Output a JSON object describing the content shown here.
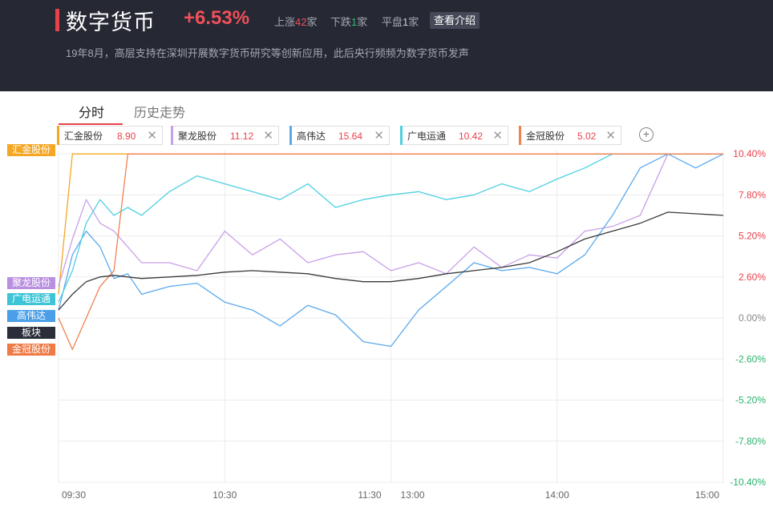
{
  "header": {
    "title": "数字货币",
    "change": "+6.53%",
    "up_label": "上涨",
    "up_count": "42",
    "unit1": "家",
    "down_label": "下跌",
    "down_count": "1",
    "unit2": "家",
    "flat_label": "平盘",
    "flat_count": "1",
    "unit3": "家",
    "intro_button": "查看介绍",
    "description": "19年8月，高层支持在深圳开展数字货币研究等创新应用，此后央行频频为数字货币发声"
  },
  "tabs": [
    {
      "label": "分时"
    },
    {
      "label": "历史走势"
    }
  ],
  "chips": [
    {
      "name": "汇金股份",
      "value": "8.90",
      "color": "#f5a623"
    },
    {
      "name": "聚龙股份",
      "value": "11.12",
      "color": "#c9a0e8"
    },
    {
      "name": "高伟达",
      "value": "15.64",
      "color": "#5aa9ee"
    },
    {
      "name": "广电运通",
      "value": "10.42",
      "color": "#4dd0e1"
    },
    {
      "name": "金冠股份",
      "value": "5.02",
      "color": "#f08050"
    }
  ],
  "add_icon": "plus-circle-icon",
  "close_icon": "close-icon",
  "side_tags": [
    {
      "label": "汇金股份",
      "color": "#f5a623"
    },
    {
      "label": "聚龙股份",
      "color": "#b98fe0"
    },
    {
      "label": "广电运通",
      "color": "#3dc4d6"
    },
    {
      "label": "高伟达",
      "color": "#4a9fe8"
    },
    {
      "label": "板块",
      "color": "#2b2e3a"
    },
    {
      "label": "金冠股份",
      "color": "#f07a45"
    }
  ],
  "chart_data": {
    "type": "line",
    "ylim": [
      -10.4,
      10.4
    ],
    "y_ticks": [
      "10.40%",
      "7.80%",
      "5.20%",
      "2.60%",
      "0.00%",
      "-2.60%",
      "-5.20%",
      "-7.80%",
      "-10.40%"
    ],
    "x_ticks": [
      "09:30",
      "10:30",
      "11:30",
      "13:00",
      "14:00",
      "15:00"
    ],
    "x": [
      0,
      5,
      10,
      15,
      20,
      25,
      30,
      40,
      50,
      60,
      70,
      80,
      90,
      100,
      110,
      120,
      130,
      140,
      150,
      160,
      170,
      180,
      190,
      200,
      210,
      220,
      230,
      240
    ],
    "series": [
      {
        "name": "汇金股份",
        "color": "#f5a623",
        "values": [
          1.5,
          10.39,
          10.39,
          10.39,
          10.39,
          10.39,
          10.39,
          10.39,
          10.39,
          10.39,
          10.39,
          10.39,
          10.39,
          10.39,
          10.39,
          10.39,
          10.39,
          10.39,
          10.39,
          10.39,
          10.39,
          10.39,
          10.39,
          10.39,
          10.39,
          10.39,
          10.39,
          10.39
        ]
      },
      {
        "name": "聚龙股份",
        "color": "#c9a0e8",
        "values": [
          2.0,
          5.0,
          7.5,
          6.0,
          5.5,
          4.5,
          3.5,
          3.5,
          3.0,
          5.5,
          4.0,
          5.0,
          3.5,
          4.0,
          4.2,
          3.0,
          3.5,
          2.8,
          4.5,
          3.2,
          4.0,
          3.8,
          5.5,
          5.8,
          6.5,
          10.39,
          10.39,
          10.39
        ]
      },
      {
        "name": "高伟达",
        "color": "#5aa9ee",
        "values": [
          0.5,
          4.0,
          5.5,
          4.5,
          2.5,
          2.8,
          1.5,
          2.0,
          2.2,
          1.0,
          0.5,
          -0.5,
          0.8,
          0.2,
          -1.5,
          -1.8,
          0.5,
          2.0,
          3.5,
          3.0,
          3.2,
          2.8,
          4.0,
          6.5,
          9.5,
          10.39,
          9.5,
          10.39
        ]
      },
      {
        "name": "广电运通",
        "color": "#4dd0e1",
        "values": [
          1.0,
          3.0,
          6.0,
          7.5,
          6.5,
          7.0,
          6.5,
          8.0,
          9.0,
          8.5,
          8.0,
          7.5,
          8.5,
          7.0,
          7.5,
          7.8,
          8.0,
          7.5,
          7.8,
          8.5,
          8.0,
          8.8,
          9.5,
          10.39,
          10.39,
          10.39,
          10.39,
          10.39
        ]
      },
      {
        "name": "金冠股份",
        "color": "#f08050",
        "values": [
          0.0,
          -2.0,
          0.0,
          2.0,
          3.0,
          10.39,
          10.39,
          10.39,
          10.39,
          10.39,
          10.39,
          10.39,
          10.39,
          10.39,
          10.39,
          10.39,
          10.39,
          10.39,
          10.39,
          10.39,
          10.39,
          10.39,
          10.39,
          10.39,
          10.39,
          10.39,
          10.39,
          10.39
        ]
      },
      {
        "name": "板块",
        "color": "#3a3a3a",
        "values": [
          0.5,
          1.5,
          2.3,
          2.6,
          2.7,
          2.6,
          2.5,
          2.6,
          2.7,
          2.9,
          3.0,
          2.9,
          2.8,
          2.5,
          2.3,
          2.3,
          2.5,
          2.8,
          3.0,
          3.2,
          3.5,
          4.2,
          5.0,
          5.5,
          6.0,
          6.7,
          6.6,
          6.5
        ]
      }
    ]
  }
}
